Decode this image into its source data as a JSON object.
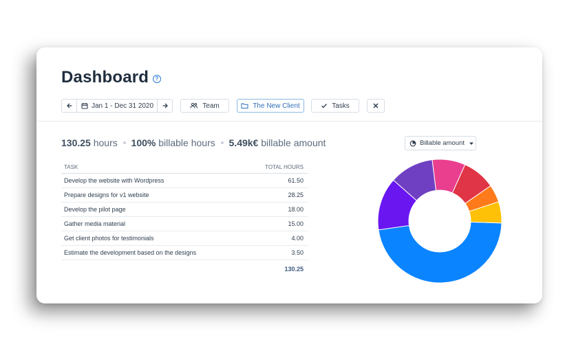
{
  "header": {
    "title": "Dashboard",
    "help_icon": "question-circle-icon"
  },
  "toolbar": {
    "date_range": "Jan 1 - Dec 31 2020",
    "team_label": "Team",
    "client_label": "The New Client",
    "tasks_label": "Tasks"
  },
  "summary": {
    "hours_value": "130.25",
    "hours_label": "hours",
    "billable_pct": "100%",
    "billable_label": "billable hours",
    "amount_value": "5.49k€",
    "amount_label": "billable amount"
  },
  "chart_selector": {
    "label": "Billable amount"
  },
  "table": {
    "columns": [
      "TASK",
      "TOTAL HOURS"
    ],
    "rows": [
      {
        "task": "Develop the website with Wordpress",
        "hours": "61.50"
      },
      {
        "task": "Prepare designs for v1 website",
        "hours": "28.25"
      },
      {
        "task": "Develop the pilot page",
        "hours": "18.00"
      },
      {
        "task": "Gather media material",
        "hours": "15.00"
      },
      {
        "task": "Get client photos for testimonials",
        "hours": "4.00"
      },
      {
        "task": "Estimate the development based on the designs",
        "hours": "3.50"
      }
    ],
    "total": "130.25"
  },
  "chart_data": {
    "type": "pie",
    "values": [
      61.5,
      18.0,
      15.0,
      11.25,
      11.25,
      6.0,
      7.25
    ],
    "colors": [
      "#0b84ff",
      "#6a16f0",
      "#7040c2",
      "#ea3f8e",
      "#e03546",
      "#ff7a1a",
      "#ffc107"
    ]
  }
}
